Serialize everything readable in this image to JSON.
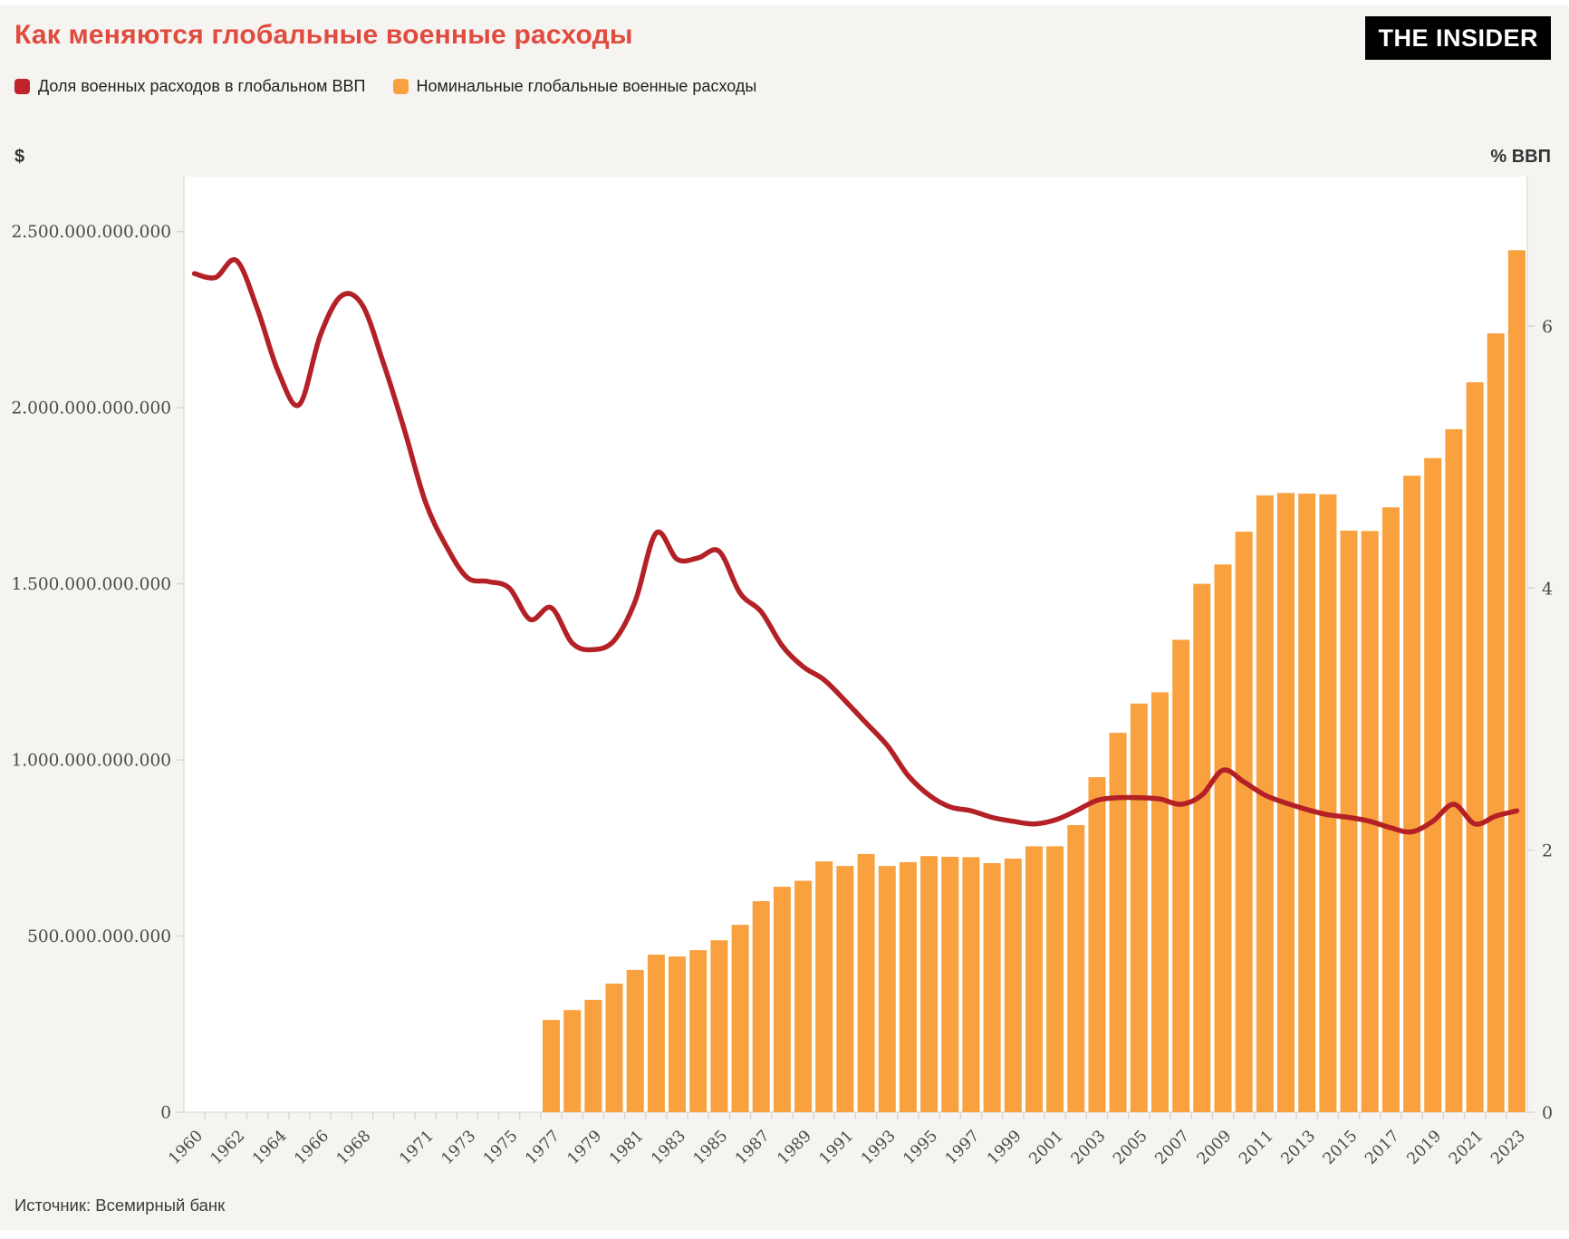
{
  "header": {
    "title": "Как меняются глобальные военные расходы",
    "title_color": "#e14b3f",
    "logo_text": "THE INSIDER",
    "logo_bg": "#000000",
    "logo_fg": "#ffffff"
  },
  "legend": {
    "items": [
      {
        "label": "Доля военных расходов в глобальном ВВП",
        "color": "#c0242a"
      },
      {
        "label": "Номинальные глобальные военные расходы",
        "color": "#f8a13e"
      }
    ]
  },
  "axes": {
    "left_unit": "$",
    "right_unit": "% ВВП",
    "left_ticks": [
      {
        "label": "0",
        "value_billion": 0
      },
      {
        "label": "500.000.000.000",
        "value_billion": 500
      },
      {
        "label": "1.000.000.000.000",
        "value_billion": 1000
      },
      {
        "label": "1.500.000.000.000",
        "value_billion": 1500
      },
      {
        "label": "2.000.000.000.000",
        "value_billion": 2000
      },
      {
        "label": "2.500.000.000.000",
        "value_billion": 2500
      }
    ],
    "right_ticks": [
      {
        "label": "0",
        "value": 0
      },
      {
        "label": "2",
        "value": 2
      },
      {
        "label": "4",
        "value": 4
      },
      {
        "label": "6",
        "value": 6
      }
    ],
    "x_labels": [
      "1960",
      "1962",
      "1964",
      "1966",
      "1968",
      "1971",
      "1973",
      "1975",
      "1977",
      "1979",
      "1981",
      "1983",
      "1985",
      "1987",
      "1989",
      "1991",
      "1993",
      "1995",
      "1997",
      "1999",
      "2001",
      "2003",
      "2005",
      "2007",
      "2009",
      "2011",
      "2013",
      "2015",
      "2017",
      "2019",
      "2021",
      "2023"
    ]
  },
  "chart_data": {
    "type": "combo",
    "title": "Как меняются глобальные военные расходы",
    "grid": false,
    "legend_position": "top-left",
    "x": [
      1960,
      1961,
      1962,
      1963,
      1964,
      1965,
      1966,
      1967,
      1968,
      1969,
      1970,
      1971,
      1972,
      1973,
      1974,
      1975,
      1976,
      1977,
      1978,
      1979,
      1980,
      1981,
      1982,
      1983,
      1984,
      1985,
      1986,
      1987,
      1988,
      1989,
      1990,
      1991,
      1992,
      1993,
      1994,
      1995,
      1996,
      1997,
      1998,
      1999,
      2000,
      2001,
      2002,
      2003,
      2004,
      2005,
      2006,
      2007,
      2008,
      2009,
      2010,
      2011,
      2012,
      2013,
      2014,
      2015,
      2016,
      2017,
      2018,
      2019,
      2020,
      2021,
      2022,
      2023
    ],
    "left_axis": {
      "unit": "$",
      "min": 0,
      "max_billion": 2656,
      "tick_step_billion": 500
    },
    "right_axis": {
      "unit": "% ВВП",
      "min": 0,
      "max": 7.14,
      "ticks": [
        0,
        2,
        4,
        6
      ]
    },
    "series": [
      {
        "name": "Доля военных расходов в глобальном ВВП",
        "type": "line",
        "axis": "right",
        "unit": "percent of GDP",
        "color": "#b32126",
        "values": [
          6.4,
          6.37,
          6.5,
          6.13,
          5.65,
          5.4,
          5.93,
          6.23,
          6.16,
          5.72,
          5.21,
          4.66,
          4.32,
          4.08,
          4.05,
          4.0,
          3.76,
          3.85,
          3.58,
          3.53,
          3.6,
          3.9,
          4.42,
          4.22,
          4.23,
          4.28,
          3.96,
          3.82,
          3.56,
          3.4,
          3.3,
          3.14,
          2.97,
          2.8,
          2.57,
          2.42,
          2.33,
          2.3,
          2.25,
          2.22,
          2.2,
          2.23,
          2.3,
          2.38,
          2.4,
          2.4,
          2.39,
          2.35,
          2.42,
          2.61,
          2.52,
          2.42,
          2.36,
          2.31,
          2.27,
          2.25,
          2.22,
          2.17,
          2.14,
          2.22,
          2.35,
          2.2,
          2.26,
          2.3
        ]
      },
      {
        "name": "Номинальные глобальные военные расходы",
        "type": "bar",
        "axis": "left",
        "unit": "USD, billions",
        "color": "#f8a13e",
        "values_billion_usd": [
          null,
          null,
          null,
          null,
          null,
          null,
          null,
          null,
          null,
          null,
          null,
          null,
          null,
          null,
          null,
          null,
          null,
          262,
          290,
          319,
          365,
          404,
          447,
          442,
          460,
          488,
          532,
          599,
          640,
          657,
          712,
          699,
          733,
          699,
          710,
          727,
          725,
          724,
          707,
          720,
          755,
          755,
          815,
          951,
          1077,
          1160,
          1192,
          1341,
          1500,
          1555,
          1648,
          1751,
          1758,
          1756,
          1754,
          1651,
          1650,
          1717,
          1807,
          1857,
          1939,
          2072,
          2211,
          2447
        ]
      }
    ]
  },
  "footer": {
    "source": "Источник: Всемирный банк"
  }
}
